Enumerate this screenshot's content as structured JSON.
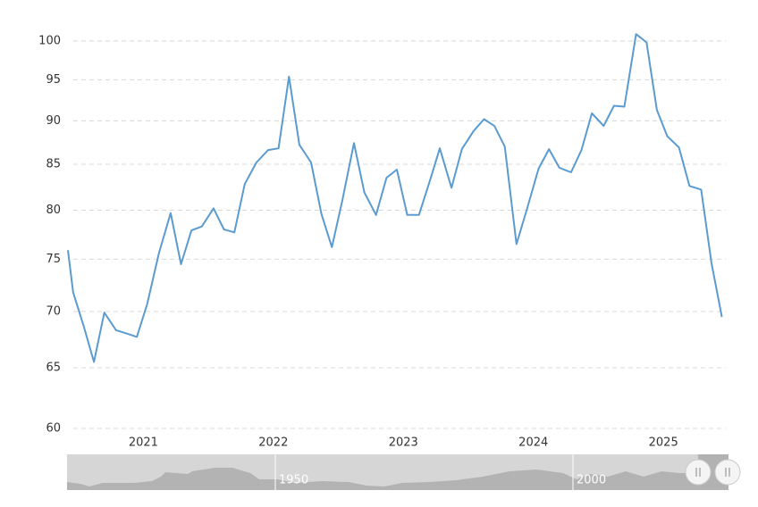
{
  "chart_data": {
    "type": "line",
    "log_scale": true,
    "grid": true,
    "xlim": [
      2020.42,
      2025.48
    ],
    "xticks": [
      2021,
      2022,
      2023,
      2024,
      2025
    ],
    "ylim": [
      60,
      102
    ],
    "yticks": [
      60,
      65,
      70,
      75,
      80,
      85,
      90,
      95,
      100
    ],
    "x": [
      2020.42,
      2020.46,
      2020.54,
      2020.62,
      2020.7,
      2020.79,
      2020.87,
      2020.95,
      2021.03,
      2021.12,
      2021.21,
      2021.29,
      2021.37,
      2021.45,
      2021.54,
      2021.62,
      2021.7,
      2021.78,
      2021.87,
      2021.96,
      2022.04,
      2022.12,
      2022.2,
      2022.29,
      2022.37,
      2022.45,
      2022.53,
      2022.62,
      2022.7,
      2022.79,
      2022.87,
      2022.95,
      2023.03,
      2023.12,
      2023.2,
      2023.28,
      2023.37,
      2023.45,
      2023.54,
      2023.62,
      2023.7,
      2023.78,
      2023.87,
      2023.95,
      2024.04,
      2024.12,
      2024.2,
      2024.29,
      2024.37,
      2024.45,
      2024.54,
      2024.62,
      2024.7,
      2024.79,
      2024.87,
      2024.95,
      2025.03,
      2025.12,
      2025.2,
      2025.29,
      2025.37,
      2025.45
    ],
    "series": [
      {
        "color": "#5b9bd0",
        "values": [
          75.9,
          71.8,
          68.7,
          65.5,
          69.9,
          68.3,
          68.0,
          67.7,
          70.7,
          75.6,
          79.7,
          74.5,
          77.9,
          78.3,
          80.2,
          78.0,
          77.7,
          82.8,
          85.2,
          86.6,
          86.8,
          95.4,
          87.2,
          85.2,
          79.6,
          76.2,
          81.0,
          87.4,
          81.9,
          79.5,
          83.5,
          84.4,
          79.5,
          79.5,
          83.0,
          86.8,
          82.4,
          86.7,
          88.8,
          90.2,
          89.4,
          87.0,
          76.5,
          80.1,
          84.5,
          86.7,
          84.6,
          84.1,
          86.6,
          90.9,
          89.4,
          91.8,
          91.7,
          100.9,
          99.8,
          91.3,
          88.2,
          86.9,
          82.6,
          82.2,
          74.6,
          69.5
        ]
      }
    ]
  },
  "navigator": {
    "labels": [
      "1950",
      "2000"
    ]
  }
}
